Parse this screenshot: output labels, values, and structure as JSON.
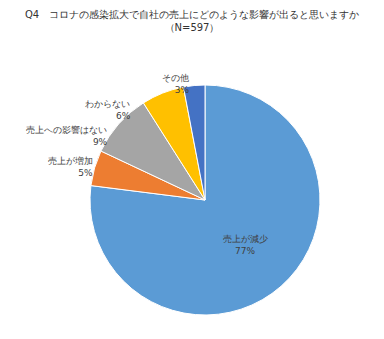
{
  "chart_data": {
    "type": "pie",
    "title": "Q4　コロナの感染拡大で自社の売上にどのような影響が出ると思いますか",
    "subtitle": "（N=597）",
    "categories": [
      "売上が減少",
      "売上が増加",
      "売上への影響はない",
      "わからない",
      "その他"
    ],
    "values": [
      77,
      5,
      9,
      6,
      3
    ],
    "value_labels": [
      "77%",
      "5%",
      "9%",
      "6%",
      "3%"
    ],
    "colors": [
      "#5b9bd5",
      "#ed7d31",
      "#a5a5a5",
      "#ffc000",
      "#4472c4"
    ],
    "data_labels": true
  }
}
